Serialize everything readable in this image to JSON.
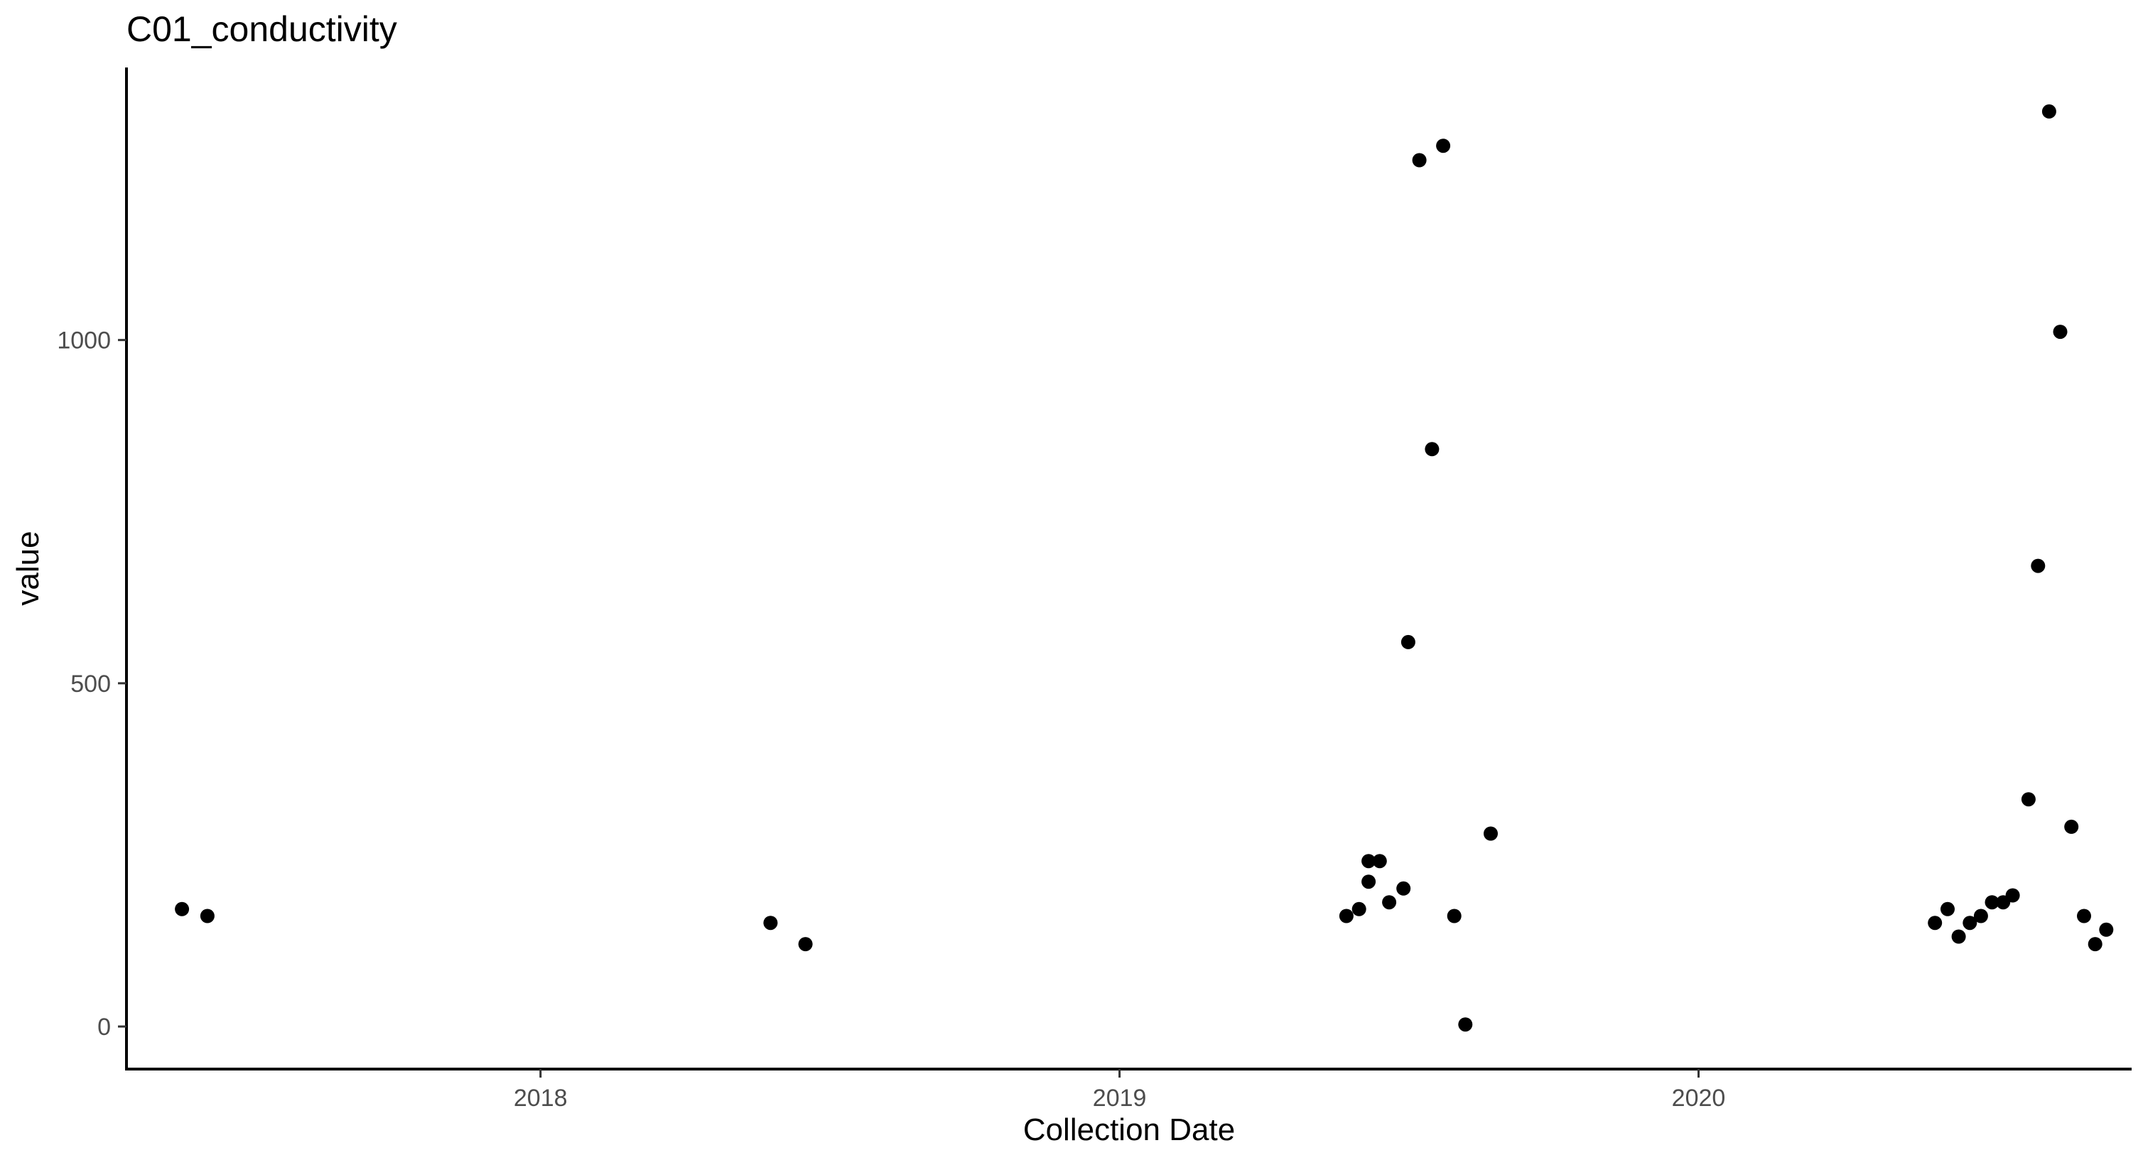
{
  "chart_data": {
    "type": "scatter",
    "title": "C01_conductivity",
    "xlabel": "Collection Date",
    "ylabel": "value",
    "x_type": "date",
    "xlim": [
      "2017-04-15",
      "2020-09-30"
    ],
    "ylim": [
      -62,
      1397
    ],
    "x_ticks": [
      "2018",
      "2019",
      "2020"
    ],
    "y_ticks": [
      0,
      500,
      1000
    ],
    "grid": false,
    "legend": "none",
    "point_color": "#000000",
    "points": [
      {
        "x": "2017-05-20",
        "y": 171
      },
      {
        "x": "2017-06-05",
        "y": 161
      },
      {
        "x": "2018-05-26",
        "y": 151
      },
      {
        "x": "2018-06-17",
        "y": 120
      },
      {
        "x": "2019-05-24",
        "y": 161
      },
      {
        "x": "2019-06-01",
        "y": 171
      },
      {
        "x": "2019-06-07",
        "y": 211
      },
      {
        "x": "2019-06-07",
        "y": 241
      },
      {
        "x": "2019-06-14",
        "y": 241
      },
      {
        "x": "2019-06-20",
        "y": 181
      },
      {
        "x": "2019-06-29",
        "y": 201
      },
      {
        "x": "2019-07-02",
        "y": 560
      },
      {
        "x": "2019-07-09",
        "y": 1262
      },
      {
        "x": "2019-07-17",
        "y": 841
      },
      {
        "x": "2019-07-24",
        "y": 1283
      },
      {
        "x": "2019-07-31",
        "y": 161
      },
      {
        "x": "2019-08-07",
        "y": 3
      },
      {
        "x": "2019-08-23",
        "y": 281
      },
      {
        "x": "2020-05-29",
        "y": 151
      },
      {
        "x": "2020-06-06",
        "y": 171
      },
      {
        "x": "2020-06-13",
        "y": 131
      },
      {
        "x": "2020-06-20",
        "y": 151
      },
      {
        "x": "2020-06-27",
        "y": 161
      },
      {
        "x": "2020-07-04",
        "y": 181
      },
      {
        "x": "2020-07-11",
        "y": 181
      },
      {
        "x": "2020-07-17",
        "y": 191
      },
      {
        "x": "2020-07-27",
        "y": 331
      },
      {
        "x": "2020-08-02",
        "y": 671
      },
      {
        "x": "2020-08-09",
        "y": 1333
      },
      {
        "x": "2020-08-16",
        "y": 1012
      },
      {
        "x": "2020-08-23",
        "y": 291
      },
      {
        "x": "2020-08-31",
        "y": 161
      },
      {
        "x": "2020-09-07",
        "y": 120
      },
      {
        "x": "2020-09-14",
        "y": 141
      }
    ]
  }
}
